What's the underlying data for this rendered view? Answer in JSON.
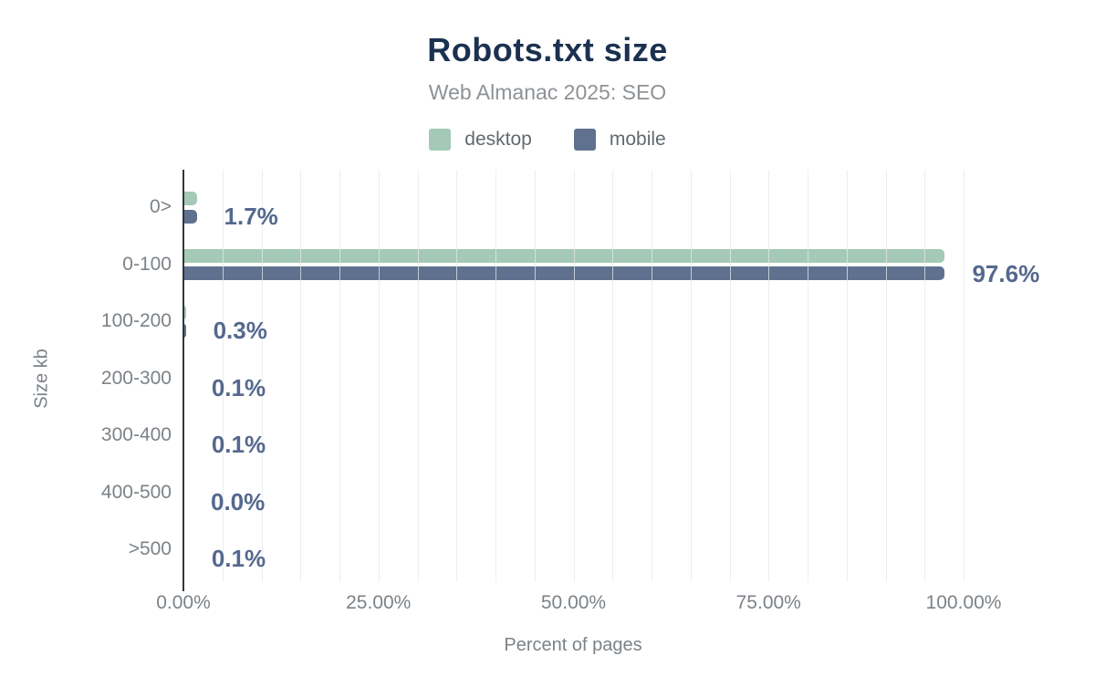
{
  "header": {
    "title": "Robots.txt size",
    "subtitle": "Web Almanac 2025: SEO"
  },
  "colors": {
    "title": "#1b3150",
    "subtitle": "#8e9296",
    "axis_text": "#7c8287",
    "data_label": "#55688e",
    "axis_line": "#30373d",
    "desktop": "#a4c9b6",
    "mobile": "#5f718e"
  },
  "chart_data": {
    "type": "bar",
    "orientation": "horizontal",
    "title": "Robots.txt size",
    "subtitle": "Web Almanac 2025: SEO",
    "categories": [
      "0>",
      "0-100",
      "100-200",
      "200-300",
      "300-400",
      "400-500",
      ">500"
    ],
    "series": [
      {
        "name": "desktop",
        "color": "#a4c9b6",
        "values": [
          1.7,
          97.6,
          0.3,
          0.1,
          0.1,
          0.0,
          0.1
        ]
      },
      {
        "name": "mobile",
        "color": "#5f718e",
        "values": [
          1.7,
          97.6,
          0.3,
          0.1,
          0.1,
          0.0,
          0.1
        ]
      }
    ],
    "value_labels": [
      "1.7%",
      "97.6%",
      "0.3%",
      "0.1%",
      "0.1%",
      "0.0%",
      "0.1%"
    ],
    "xlabel": "Percent of pages",
    "ylabel": "Size kb",
    "x_ticks": [
      {
        "value": 0,
        "label": "0.00%"
      },
      {
        "value": 25,
        "label": "25.00%"
      },
      {
        "value": 50,
        "label": "50.00%"
      },
      {
        "value": 75,
        "label": "75.00%"
      },
      {
        "value": 100,
        "label": "100.00%"
      }
    ],
    "xlim": [
      0,
      100
    ],
    "gridline_step": 5,
    "grid": true,
    "legend_position": "top"
  }
}
